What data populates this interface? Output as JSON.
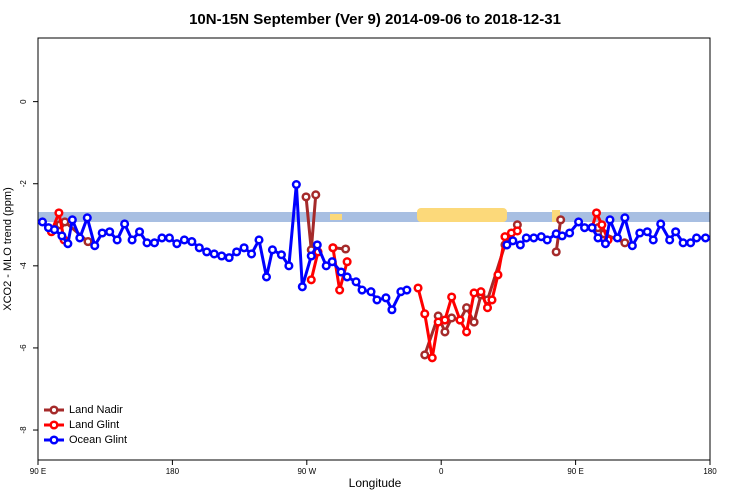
{
  "chart_data": {
    "type": "line",
    "title": "10N-15N September (Ver 9)   2014-09-06 to 2018-12-31",
    "xlabel": "Longitude",
    "ylabel": "XCO2 - MLO trend (ppm)",
    "xlim": [
      90,
      540
    ],
    "ylim": [
      1.55,
      -8.73
    ],
    "xticks": [
      {
        "value": 90,
        "label": "90 E"
      },
      {
        "value": 180,
        "label": "180"
      },
      {
        "value": 270,
        "label": "90 W"
      },
      {
        "value": 360,
        "label": "0"
      },
      {
        "value": 450,
        "label": "90 E"
      },
      {
        "value": 540,
        "label": "180"
      }
    ],
    "yticks": [
      0,
      -2,
      -4,
      -6,
      -8
    ],
    "legend": "bottom-left",
    "series": [
      {
        "name": "Land Nadir",
        "color": "#a52a2a",
        "x": [
          104.7,
          108,
          123.5,
          null,
          269.5,
          273,
          276,
          null,
          287.5,
          296,
          null,
          349,
          358,
          362.5,
          367,
          372.6,
          377,
          382,
          386.6,
          391,
          402.7,
          411,
          null,
          437,
          440,
          null,
          465,
          469,
          483
        ],
        "values": [
          -3.0,
          -2.93,
          -3.41,
          null,
          -2.32,
          -3.61,
          -2.27,
          null,
          -3.56,
          -3.59,
          null,
          -6.17,
          -5.22,
          -5.61,
          -5.27,
          -5.32,
          -5.02,
          -5.37,
          -4.71,
          -4.83,
          -3.49,
          -3.0,
          null,
          -3.66,
          -2.88,
          null,
          -3.07,
          -3.22,
          -3.44
        ]
      },
      {
        "name": "Land Glint",
        "color": "#ff0000",
        "x": [
          99,
          104,
          107.5,
          null,
          273,
          277.5,
          null,
          287.5,
          292,
          297,
          null,
          344.5,
          349,
          354,
          358,
          362.5,
          367,
          372.6,
          377,
          382,
          386.6,
          391,
          394,
          398,
          402.7,
          407,
          411,
          null,
          461,
          464,
          467.6,
          471.7
        ],
        "values": [
          -3.17,
          -2.71,
          -3.37,
          null,
          -4.34,
          -3.66,
          null,
          -3.56,
          -4.59,
          -3.9,
          null,
          -4.54,
          -5.17,
          -6.24,
          -5.37,
          -5.32,
          -4.76,
          -5.32,
          -5.61,
          -4.66,
          -4.63,
          -5.02,
          -4.83,
          -4.22,
          -3.29,
          -3.2,
          -3.15,
          null,
          -3.07,
          -2.71,
          -3.0,
          -3.37
        ]
      },
      {
        "name": "Ocean Glint",
        "color": "#0000ff",
        "x": [
          93,
          97,
          101,
          106,
          110,
          113,
          118,
          123,
          128,
          133,
          138,
          143,
          148,
          153,
          158,
          163,
          168,
          173,
          178,
          183,
          188,
          193,
          198,
          203,
          208,
          213,
          218,
          223,
          228,
          233,
          238,
          243,
          247,
          253,
          258,
          263,
          267,
          273,
          277,
          283,
          287,
          293,
          297,
          303,
          307,
          313,
          317,
          323,
          327,
          333,
          337,
          null,
          404,
          408,
          413,
          417,
          422,
          427,
          431,
          437,
          441,
          446,
          452,
          456,
          461,
          465,
          470,
          473,
          478,
          483,
          488,
          493,
          498,
          502,
          507,
          513,
          517,
          522,
          527,
          531,
          537
        ],
        "values": [
          -2.93,
          -3.07,
          -3.12,
          -3.27,
          -3.46,
          -2.88,
          -3.32,
          -2.83,
          -3.51,
          -3.2,
          -3.17,
          -3.37,
          -2.98,
          -3.37,
          -3.17,
          -3.44,
          -3.44,
          -3.32,
          -3.32,
          -3.46,
          -3.37,
          -3.41,
          -3.56,
          -3.66,
          -3.71,
          -3.76,
          -3.8,
          -3.66,
          -3.56,
          -3.71,
          -3.37,
          -4.27,
          -3.61,
          -3.73,
          -4.0,
          -2.02,
          -4.51,
          -3.76,
          -3.49,
          -4.0,
          -3.9,
          -4.15,
          -4.27,
          -4.39,
          -4.59,
          -4.63,
          -4.83,
          -4.78,
          -5.07,
          -4.63,
          -4.59,
          null,
          -3.49,
          -3.39,
          -3.49,
          -3.32,
          -3.32,
          -3.29,
          -3.37,
          -3.22,
          -3.27,
          -3.2,
          -2.93,
          -3.07,
          -3.07,
          -3.32,
          -3.46,
          -2.88,
          -3.32,
          -2.83,
          -3.51,
          -3.2,
          -3.17,
          -3.37,
          -2.98,
          -3.37,
          -3.17,
          -3.44,
          -3.44,
          -3.32,
          -3.32
        ]
      }
    ]
  }
}
